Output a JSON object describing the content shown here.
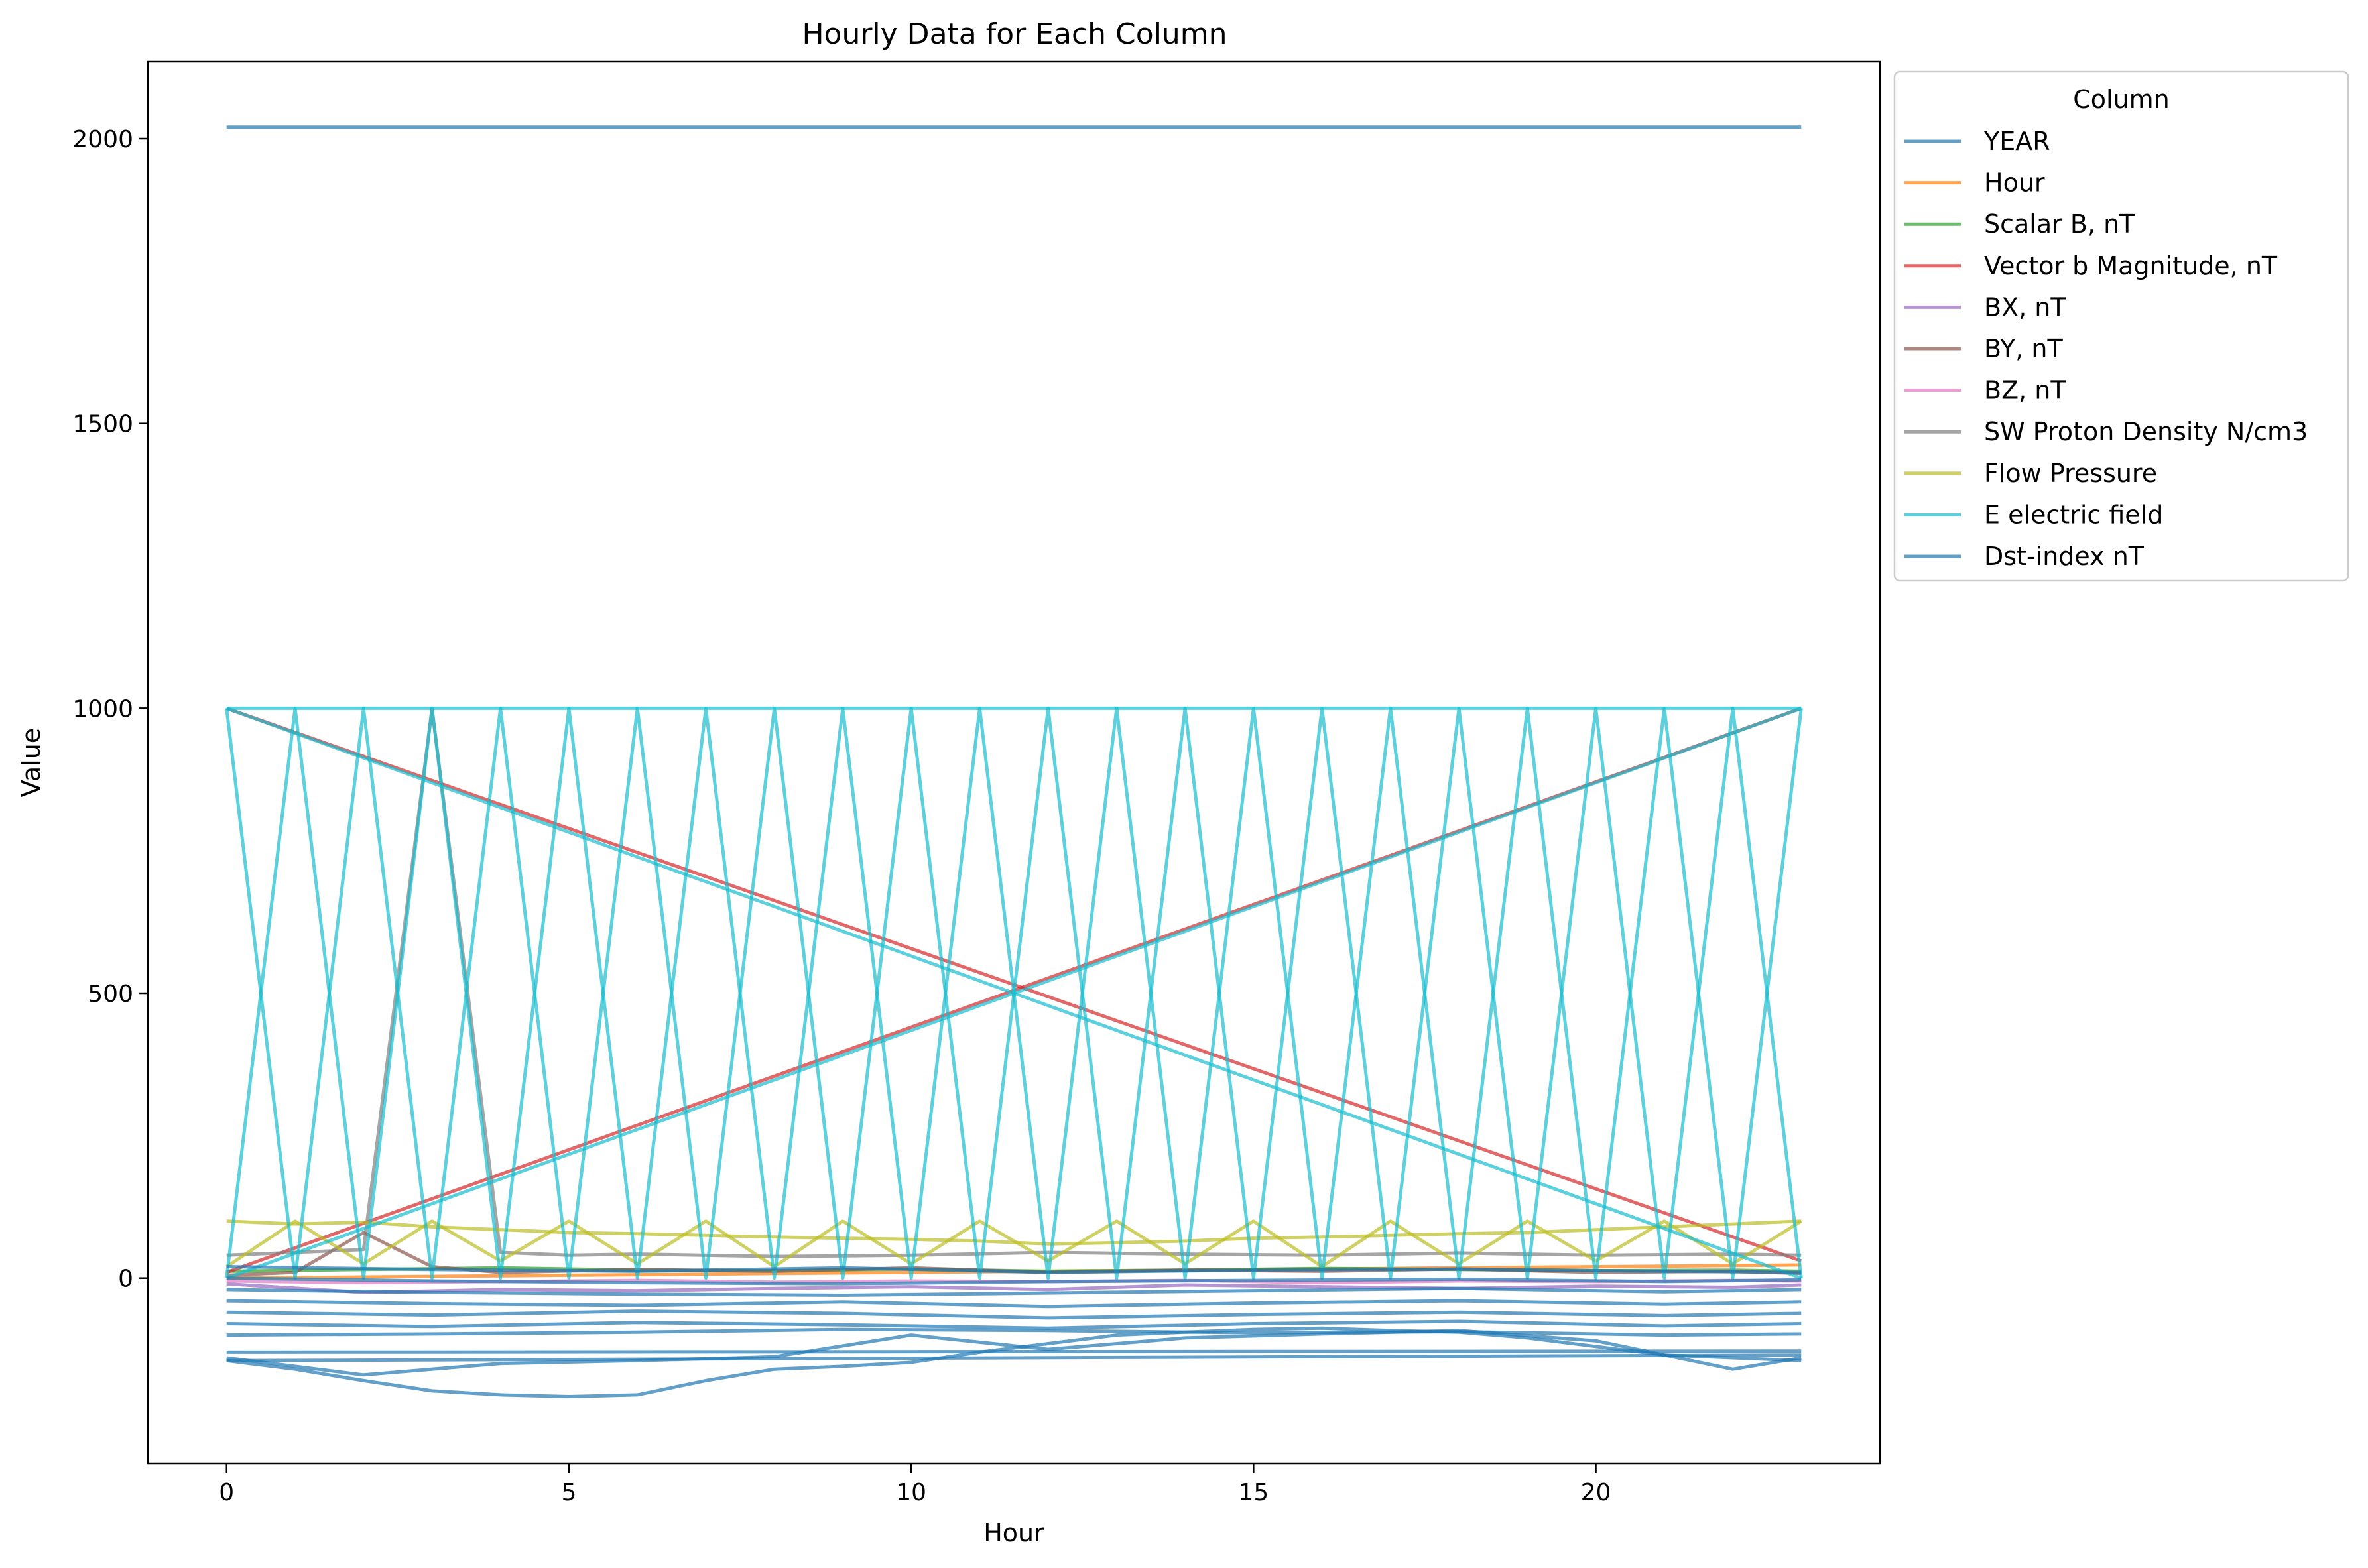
{
  "chart_data": {
    "type": "line",
    "title": "Hourly Data for Each Column",
    "xlabel": "Hour",
    "ylabel": "Value",
    "xlim": [
      -1.15,
      24.15
    ],
    "ylim": [
      -325,
      2135
    ],
    "xticks": [
      0,
      5,
      10,
      15,
      20
    ],
    "yticks": [
      0,
      500,
      1000,
      1500,
      2000
    ],
    "grid": false,
    "legend": {
      "title": "Column",
      "placement": "outside-upper-right",
      "entries": [
        {
          "name": "YEAR",
          "color": "#1f77b4"
        },
        {
          "name": "Hour",
          "color": "#ff7f0e"
        },
        {
          "name": "Scalar B, nT",
          "color": "#2ca02c"
        },
        {
          "name": "Vector b Magnitude, nT",
          "color": "#d62728"
        },
        {
          "name": "BX, nT",
          "color": "#9467bd"
        },
        {
          "name": "BY, nT",
          "color": "#8c564b"
        },
        {
          "name": "BZ, nT",
          "color": "#e377c2"
        },
        {
          "name": "SW Proton Density N/cm3",
          "color": "#7f7f7f"
        },
        {
          "name": "Flow Pressure",
          "color": "#bcbd22"
        },
        {
          "name": "E electric field",
          "color": "#17becf"
        },
        {
          "name": "Dst-index nT",
          "color": "#1f77b4"
        }
      ]
    },
    "series": [
      {
        "name": "YEAR",
        "color": "#1f77b4",
        "x": [
          0,
          23
        ],
        "y": [
          2020,
          2020
        ]
      },
      {
        "name": "Hour",
        "color": "#ff7f0e",
        "x": [
          0,
          1,
          2,
          3,
          4,
          5,
          6,
          7,
          8,
          9,
          10,
          11,
          12,
          13,
          14,
          15,
          16,
          17,
          18,
          19,
          20,
          21,
          22,
          23
        ],
        "y": [
          0,
          1,
          2,
          3,
          4,
          5,
          6,
          7,
          8,
          9,
          10,
          11,
          12,
          13,
          14,
          15,
          16,
          17,
          18,
          19,
          20,
          21,
          22,
          23
        ]
      },
      {
        "name": "Scalar B, nT",
        "color": "#2ca02c",
        "x": [
          0,
          2,
          4,
          6,
          8,
          10,
          12,
          14,
          16,
          18,
          20,
          22,
          23
        ],
        "y": [
          12,
          15,
          18,
          14,
          13,
          16,
          12,
          14,
          17,
          15,
          13,
          14,
          12
        ]
      },
      {
        "name": "Vector b Magnitude, nT",
        "color": "#d62728",
        "x": [
          0,
          23
        ],
        "y": [
          10,
          1000
        ]
      },
      {
        "name": "Vector b Magnitude, nT",
        "color": "#d62728",
        "x": [
          0,
          23
        ],
        "y": [
          1000,
          30
        ]
      },
      {
        "name": "BX, nT",
        "color": "#9467bd",
        "x": [
          0,
          2,
          4,
          6,
          8,
          10,
          12,
          14,
          16,
          18,
          20,
          22,
          23
        ],
        "y": [
          -10,
          -25,
          -20,
          -22,
          -18,
          -15,
          -20,
          -12,
          -15,
          -18,
          -14,
          -16,
          -12
        ]
      },
      {
        "name": "BY, nT",
        "color": "#8c564b",
        "x": [
          0,
          1,
          2,
          3,
          4,
          6,
          8,
          10,
          12,
          14,
          16,
          18,
          20,
          22,
          23
        ],
        "y": [
          5,
          10,
          80,
          20,
          10,
          15,
          12,
          18,
          10,
          14,
          12,
          16,
          10,
          12,
          8
        ]
      },
      {
        "name": "BZ, nT",
        "color": "#e377c2",
        "x": [
          0,
          2,
          4,
          6,
          8,
          10,
          12,
          14,
          16,
          18,
          20,
          22,
          23
        ],
        "y": [
          -5,
          -8,
          -6,
          -4,
          -7,
          -5,
          -6,
          -4,
          -8,
          -5,
          -6,
          -4,
          -5
        ]
      },
      {
        "name": "SW Proton Density N/cm3",
        "color": "#7f7f7f",
        "x": [
          0,
          1,
          2,
          3,
          4,
          5,
          6,
          8,
          10,
          12,
          14,
          16,
          18,
          20,
          22,
          23
        ],
        "y": [
          40,
          45,
          50,
          1000,
          45,
          40,
          42,
          38,
          40,
          45,
          42,
          40,
          44,
          40,
          42,
          40
        ]
      },
      {
        "name": "Flow Pressure",
        "color": "#bcbd22",
        "x": [
          0,
          1,
          2,
          3,
          4,
          5,
          6,
          7,
          8,
          9,
          10,
          11,
          12,
          13,
          14,
          15,
          16,
          17,
          18,
          19,
          20,
          21,
          22,
          23
        ],
        "y": [
          100,
          95,
          98,
          90,
          85,
          80,
          78,
          75,
          72,
          70,
          68,
          65,
          60,
          62,
          65,
          70,
          72,
          75,
          78,
          80,
          85,
          90,
          95,
          100
        ]
      },
      {
        "name": "Flow Pressure",
        "color": "#bcbd22",
        "x": [
          0,
          1,
          2,
          3,
          4,
          5,
          6,
          7,
          8,
          9,
          10,
          11,
          12,
          13,
          14,
          15,
          16,
          17,
          18,
          19,
          20,
          21,
          22,
          23
        ],
        "y": [
          20,
          100,
          25,
          100,
          30,
          100,
          25,
          100,
          20,
          100,
          25,
          100,
          30,
          100,
          25,
          100,
          20,
          100,
          25,
          100,
          30,
          100,
          25,
          100
        ]
      },
      {
        "name": "E electric field",
        "color": "#17becf",
        "x": [
          0,
          23
        ],
        "y": [
          1000,
          1000
        ]
      },
      {
        "name": "E electric field",
        "color": "#17becf",
        "x": [
          0,
          23
        ],
        "y": [
          0,
          1000
        ]
      },
      {
        "name": "E electric field",
        "color": "#17becf",
        "x": [
          0,
          23
        ],
        "y": [
          1000,
          0
        ]
      },
      {
        "name": "E electric field",
        "color": "#17becf",
        "x": [
          0,
          1,
          2,
          3,
          4,
          5,
          6,
          7,
          8,
          9,
          10,
          11,
          12,
          13,
          14,
          15,
          16,
          17,
          18,
          19,
          20,
          21,
          22,
          23
        ],
        "y": [
          1000,
          0,
          1000,
          0,
          1000,
          0,
          1000,
          0,
          1000,
          0,
          1000,
          0,
          1000,
          0,
          1000,
          0,
          1000,
          0,
          1000,
          0,
          1000,
          0,
          1000,
          0
        ]
      },
      {
        "name": "E electric field",
        "color": "#17becf",
        "x": [
          0,
          1,
          2,
          3,
          4,
          5,
          6,
          7,
          8,
          9,
          10,
          11,
          12,
          13,
          14,
          15,
          16,
          17,
          18,
          19,
          20,
          21,
          22,
          23
        ],
        "y": [
          0,
          1000,
          0,
          1000,
          0,
          1000,
          0,
          1000,
          0,
          1000,
          0,
          1000,
          0,
          1000,
          0,
          1000,
          0,
          1000,
          0,
          1000,
          0,
          1000,
          0,
          1000
        ]
      },
      {
        "name": "Dst-index nT",
        "color": "#1f77b4",
        "x": [
          0,
          1,
          2,
          3,
          4,
          5,
          6,
          7,
          8,
          9,
          10,
          11,
          12,
          13,
          14,
          15,
          16,
          17,
          18,
          19,
          20,
          21,
          22,
          23
        ],
        "y": [
          -145,
          -160,
          -180,
          -198,
          -205,
          -208,
          -205,
          -180,
          -160,
          -155,
          -148,
          -130,
          -115,
          -100,
          -95,
          -90,
          -88,
          -92,
          -95,
          -105,
          -120,
          -135,
          -140,
          -145
        ]
      },
      {
        "name": "Dst-index nT",
        "color": "#1f77b4",
        "x": [
          0,
          2,
          4,
          6,
          8,
          10,
          12,
          14,
          16,
          18,
          20,
          22,
          23
        ],
        "y": [
          -140,
          -170,
          -150,
          -145,
          -138,
          -100,
          -125,
          -105,
          -98,
          -92,
          -110,
          -160,
          -140
        ]
      },
      {
        "name": "Dst-index nT",
        "color": "#1f77b4",
        "x": [
          0,
          23
        ],
        "y": [
          -145,
          -135
        ]
      },
      {
        "name": "Dst-index nT",
        "color": "#1f77b4",
        "x": [
          0,
          23
        ],
        "y": [
          -130,
          -128
        ]
      },
      {
        "name": "Dst-index nT",
        "color": "#1f77b4",
        "x": [
          0,
          3,
          6,
          9,
          12,
          15,
          18,
          21,
          23
        ],
        "y": [
          -100,
          -98,
          -95,
          -90,
          -92,
          -96,
          -94,
          -100,
          -98
        ]
      },
      {
        "name": "Dst-index nT",
        "color": "#1f77b4",
        "x": [
          0,
          3,
          6,
          9,
          12,
          15,
          18,
          21,
          23
        ],
        "y": [
          -80,
          -85,
          -78,
          -82,
          -88,
          -80,
          -76,
          -84,
          -80
        ]
      },
      {
        "name": "Dst-index nT",
        "color": "#1f77b4",
        "x": [
          0,
          3,
          6,
          9,
          12,
          15,
          18,
          21,
          23
        ],
        "y": [
          -60,
          -65,
          -58,
          -62,
          -70,
          -64,
          -60,
          -66,
          -62
        ]
      },
      {
        "name": "Dst-index nT",
        "color": "#1f77b4",
        "x": [
          0,
          3,
          6,
          9,
          12,
          15,
          18,
          21,
          23
        ],
        "y": [
          -40,
          -45,
          -48,
          -42,
          -50,
          -44,
          -40,
          -46,
          -42
        ]
      },
      {
        "name": "Dst-index nT",
        "color": "#1f77b4",
        "x": [
          0,
          3,
          6,
          9,
          12,
          15,
          18,
          21,
          23
        ],
        "y": [
          -20,
          -25,
          -28,
          -30,
          -26,
          -22,
          -18,
          -24,
          -20
        ]
      },
      {
        "name": "Dst-index nT",
        "color": "#1f77b4",
        "x": [
          0,
          3,
          6,
          9,
          12,
          15,
          18,
          21,
          23
        ],
        "y": [
          0,
          -5,
          -8,
          -10,
          -6,
          -4,
          -2,
          -6,
          -3
        ]
      },
      {
        "name": "Dst-index nT",
        "color": "#1f77b4",
        "x": [
          0,
          3,
          6,
          9,
          12,
          15,
          18,
          21,
          23
        ],
        "y": [
          20,
          15,
          12,
          18,
          10,
          14,
          16,
          12,
          10
        ]
      }
    ]
  }
}
